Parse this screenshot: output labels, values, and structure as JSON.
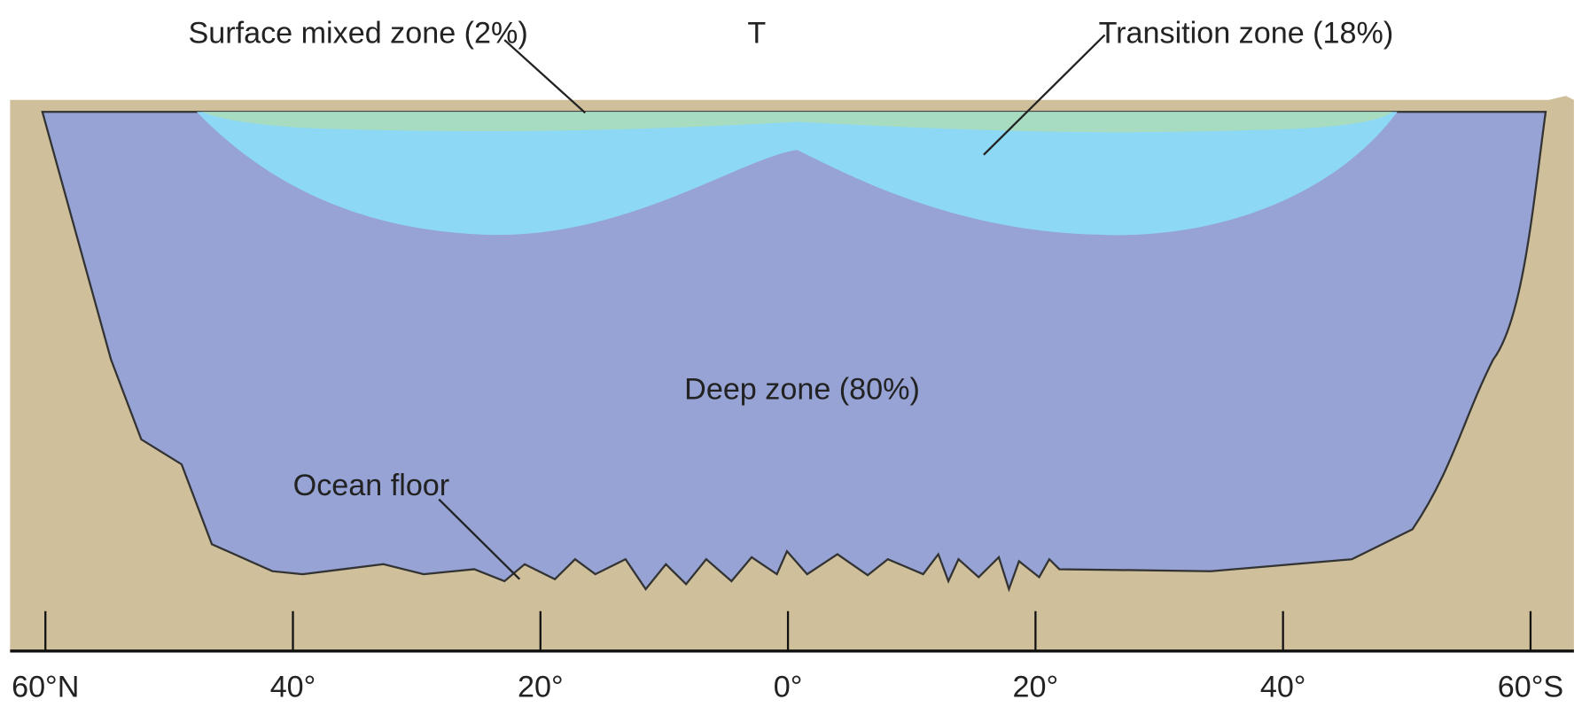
{
  "labels": {
    "surface": "Surface mixed zone (2%)",
    "top_mark": "T",
    "transition": "Transition zone (18%)",
    "deep": "Deep zone (80%)",
    "floor": "Ocean floor"
  },
  "axis": {
    "ticks": [
      "60°N",
      "40°",
      "20°",
      "0°",
      "20°",
      "40°",
      "60°S"
    ]
  }
}
